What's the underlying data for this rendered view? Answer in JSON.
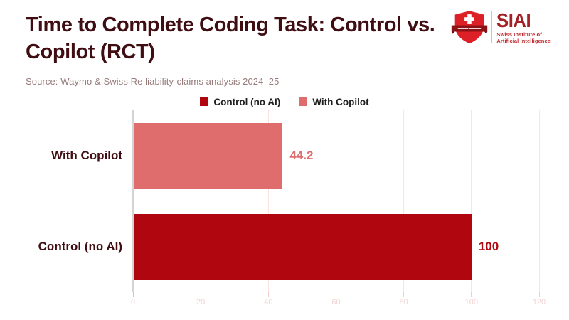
{
  "header": {
    "title_line1": "Time to Complete Coding Task: Control vs.",
    "title_line2": "Copilot (RCT)",
    "source": "Source: Waymo & Swiss Re liability-claims analysis 2024–25"
  },
  "logo": {
    "shield_icon": "swiss-shield-icon",
    "acronym": "SIAI",
    "name_line1": "Swiss Institute of",
    "name_line2": "Artificial Intelligence"
  },
  "chart_data": {
    "type": "bar",
    "orientation": "horizontal",
    "title": "Time to Complete Coding Task: Control vs. Copilot (RCT)",
    "categories": [
      "With Copilot",
      "Control (no AI)"
    ],
    "values": [
      44.2,
      100
    ],
    "value_labels": [
      "44.2",
      "100"
    ],
    "bar_colors": [
      "#e06d6d",
      "#b0060f"
    ],
    "xlim": [
      0,
      120
    ],
    "xticks": [
      0,
      20,
      40,
      60,
      80,
      100,
      120
    ],
    "grid": true,
    "legend_position": "top-center",
    "legend": [
      {
        "label": "Control (no AI)",
        "color": "#b0060f"
      },
      {
        "label": "With Copilot",
        "color": "#e06d6d"
      }
    ]
  },
  "colors": {
    "title_text": "#3f0d12",
    "source_text": "#967a7a",
    "category_label": "#3f0d12",
    "legend_text": "#1f1f1f",
    "grid_line": "#fbe3e3",
    "tick_mark": "#f2cdcd",
    "tick_zero_mark": "#c9c9c9",
    "tick_label": "#f3d2d2",
    "axis_line": "#d4d4d4",
    "logo_shield_red": "#dd2027",
    "logo_banner_red": "#8c1216",
    "logo_text_red": "#a32024"
  }
}
